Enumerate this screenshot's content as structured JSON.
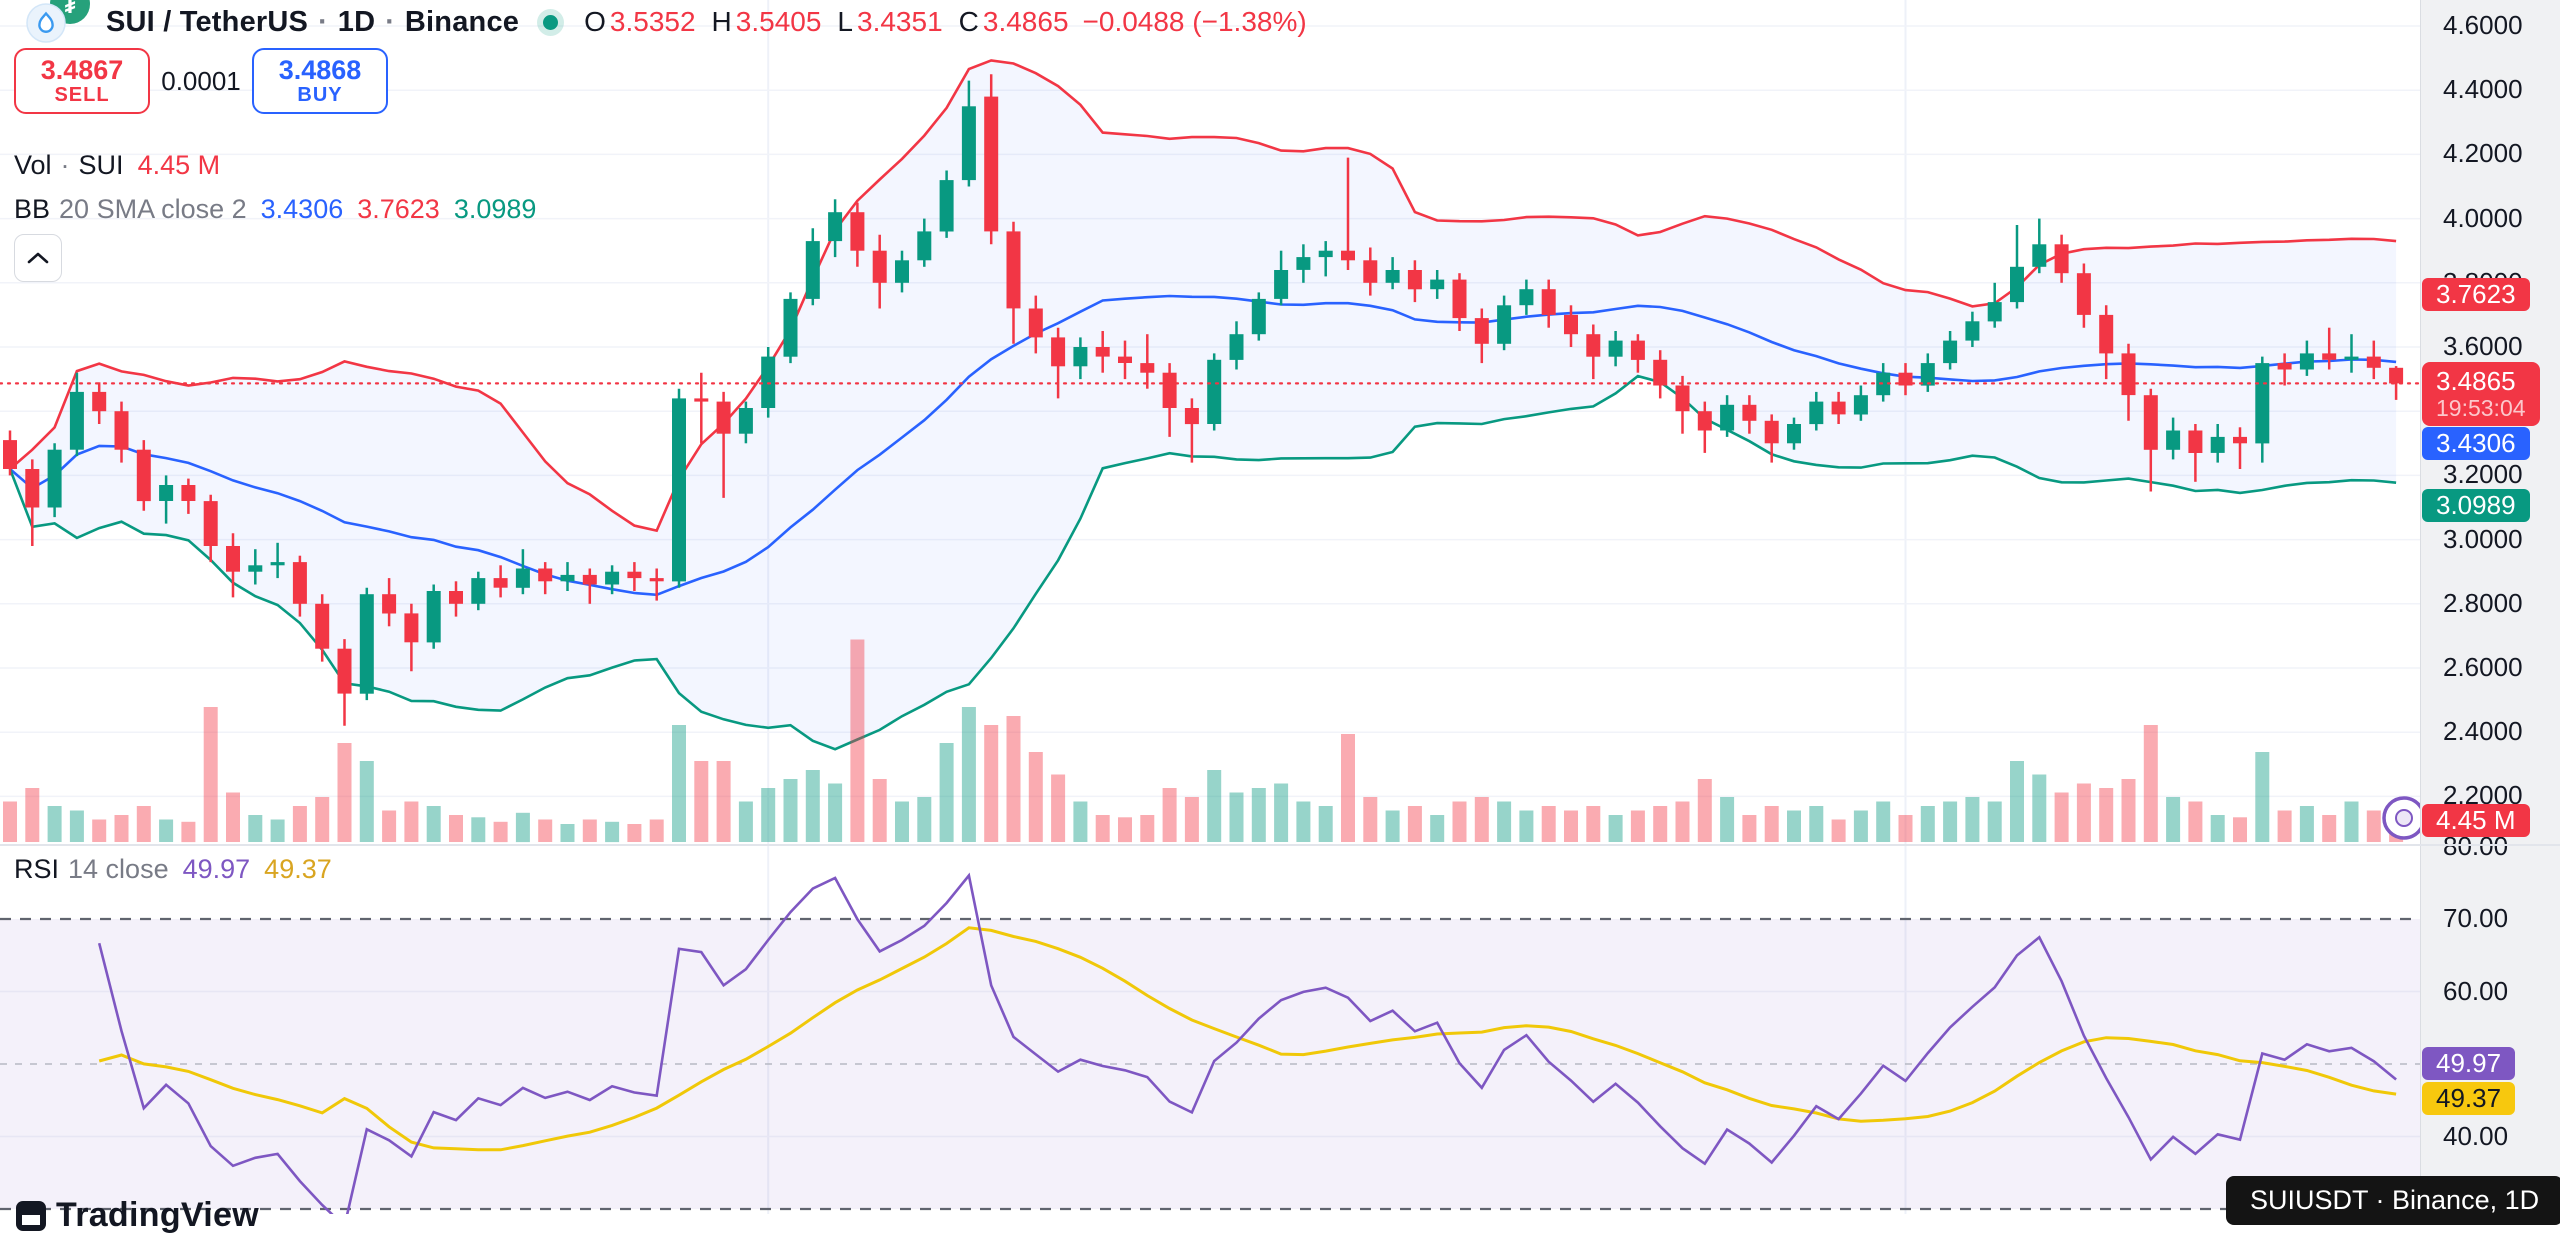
{
  "header": {
    "title_parts": [
      "SUI / TetherUS",
      "1D",
      "Binance"
    ],
    "separator": "·",
    "ohlc": [
      {
        "label": "O",
        "value": "3.5352"
      },
      {
        "label": "H",
        "value": "3.5405"
      },
      {
        "label": "L",
        "value": "3.4351"
      },
      {
        "label": "C",
        "value": "3.4865"
      }
    ],
    "change": "−0.0488 (−1.38%)"
  },
  "trade_panel": {
    "sell_price": "3.4867",
    "sell_label": "SELL",
    "spread": "0.0001",
    "buy_price": "3.4868",
    "buy_label": "BUY"
  },
  "volume_row": {
    "label": "Vol",
    "separator": "·",
    "symbol": "SUI",
    "value": "4.45 M"
  },
  "bb_row": {
    "label": "BB",
    "params": "20 SMA close 2",
    "basis": "3.4306",
    "upper": "3.7623",
    "lower": "3.0989"
  },
  "rsi_row": {
    "label": "RSI",
    "params": "14 close",
    "value": "49.97",
    "ma": "49.37"
  },
  "price_axis": {
    "ticks": [
      {
        "label": "4.6000",
        "value": 4.6
      },
      {
        "label": "4.4000",
        "value": 4.4
      },
      {
        "label": "4.2000",
        "value": 4.2
      },
      {
        "label": "4.0000",
        "value": 4.0
      },
      {
        "label": "3.8000",
        "value": 3.8
      },
      {
        "label": "3.6000",
        "value": 3.6
      },
      {
        "label": "3.2000",
        "value": 3.2
      },
      {
        "label": "3.0000",
        "value": 3.0
      },
      {
        "label": "2.8000",
        "value": 2.8
      },
      {
        "label": "2.6000",
        "value": 2.6
      },
      {
        "label": "2.4000",
        "value": 2.4
      },
      {
        "label": "2.2000",
        "value": 2.2
      }
    ]
  },
  "rsi_axis": {
    "ticks": [
      {
        "label": "80.00",
        "value": 80
      },
      {
        "label": "70.00",
        "value": 70
      },
      {
        "label": "60.00",
        "value": 60
      },
      {
        "label": "40.00",
        "value": 40
      }
    ]
  },
  "badges": {
    "upper": "3.7623",
    "last_price": "3.4865",
    "countdown": "19:53:04",
    "basis": "3.4306",
    "lower": "3.0989",
    "volume": "4.45 M",
    "rsi": "49.97",
    "rsi_ma": "49.37"
  },
  "tooltip": {
    "text": "SUIUSDT · Binance, 1D"
  },
  "logo": {
    "text": "TradingView"
  },
  "colors": {
    "up": "#089981",
    "down": "#f23645",
    "vol_up": "rgba(8,153,129,0.42)",
    "vol_down": "rgba(242,54,69,0.42)",
    "bb_upper": "#f23645",
    "bb_basis": "#2962ff",
    "bb_lower": "#089981",
    "bb_fill": "rgba(41,98,255,0.055)",
    "rsi_line": "#7e57c2",
    "rsi_ma_line": "#f0c808",
    "rsi_band_fill": "rgba(126,87,194,0.085)",
    "grid": "#f1f3f9",
    "vgrid": "#eef1f8",
    "dashed_dark": "#60646e",
    "dashed_mid": "#b6b9c3",
    "last_price_line": "#f23645"
  },
  "chart_data": {
    "type": "candlestick",
    "symbol": "SUIUSDT",
    "exchange": "Binance",
    "interval": "1D",
    "price_visible_range": [
      2.06,
      4.68
    ],
    "rsi_hlines": {
      "upper": 70,
      "middle": 50,
      "lower": 30
    },
    "rsi_gridlines": [
      60,
      40
    ],
    "price_gridlines": [
      4.6,
      4.4,
      4.2,
      4.0,
      3.8,
      3.6,
      3.4,
      3.2,
      3.0,
      2.8,
      2.6,
      2.4,
      2.2
    ],
    "vgrid_candle_indices": [
      34,
      85
    ],
    "indicators": {
      "bollinger": {
        "length": 20,
        "mult": 2,
        "basis": 3.4306,
        "upper": 3.7623,
        "lower": 3.0989
      },
      "rsi": {
        "length": 14,
        "value": 49.97,
        "ma": 49.37
      },
      "last_price": 3.4865,
      "last_volume_m": 4.45
    },
    "volume_unit": "M",
    "candles": [
      [
        3.31,
        3.34,
        3.2,
        3.22,
        9
      ],
      [
        3.22,
        3.25,
        2.98,
        3.1,
        12
      ],
      [
        3.1,
        3.3,
        3.07,
        3.28,
        8
      ],
      [
        3.28,
        3.52,
        3.26,
        3.46,
        7
      ],
      [
        3.46,
        3.49,
        3.36,
        3.4,
        5
      ],
      [
        3.4,
        3.43,
        3.24,
        3.28,
        6
      ],
      [
        3.28,
        3.31,
        3.09,
        3.12,
        8
      ],
      [
        3.12,
        3.2,
        3.05,
        3.17,
        5
      ],
      [
        3.17,
        3.19,
        3.08,
        3.12,
        4.5
      ],
      [
        3.12,
        3.14,
        2.93,
        2.98,
        30
      ],
      [
        2.98,
        3.02,
        2.82,
        2.9,
        11
      ],
      [
        2.9,
        2.97,
        2.86,
        2.92,
        6
      ],
      [
        2.92,
        2.99,
        2.88,
        2.93,
        5
      ],
      [
        2.93,
        2.95,
        2.76,
        2.8,
        8
      ],
      [
        2.8,
        2.83,
        2.62,
        2.66,
        10
      ],
      [
        2.66,
        2.69,
        2.42,
        2.52,
        22
      ],
      [
        2.52,
        2.85,
        2.5,
        2.83,
        18
      ],
      [
        2.83,
        2.88,
        2.73,
        2.77,
        7
      ],
      [
        2.77,
        2.8,
        2.59,
        2.68,
        9
      ],
      [
        2.68,
        2.86,
        2.66,
        2.84,
        8
      ],
      [
        2.84,
        2.87,
        2.76,
        2.8,
        6
      ],
      [
        2.8,
        2.9,
        2.78,
        2.88,
        5.5
      ],
      [
        2.88,
        2.92,
        2.82,
        2.85,
        4.5
      ],
      [
        2.85,
        2.97,
        2.83,
        2.91,
        6.5
      ],
      [
        2.91,
        2.93,
        2.83,
        2.87,
        5
      ],
      [
        2.87,
        2.93,
        2.84,
        2.89,
        4
      ],
      [
        2.89,
        2.91,
        2.8,
        2.86,
        5
      ],
      [
        2.86,
        2.92,
        2.83,
        2.9,
        4.5
      ],
      [
        2.9,
        2.93,
        2.84,
        2.88,
        4
      ],
      [
        2.88,
        2.91,
        2.81,
        2.87,
        5
      ],
      [
        2.87,
        3.47,
        2.85,
        3.44,
        26
      ],
      [
        3.44,
        3.52,
        3.3,
        3.43,
        18
      ],
      [
        3.43,
        3.46,
        3.13,
        3.33,
        18
      ],
      [
        3.33,
        3.43,
        3.3,
        3.41,
        9
      ],
      [
        3.41,
        3.6,
        3.38,
        3.57,
        12
      ],
      [
        3.57,
        3.77,
        3.55,
        3.75,
        14
      ],
      [
        3.75,
        3.97,
        3.73,
        3.93,
        16
      ],
      [
        3.93,
        4.06,
        3.88,
        4.02,
        13
      ],
      [
        4.02,
        4.05,
        3.85,
        3.9,
        45
      ],
      [
        3.9,
        3.95,
        3.72,
        3.8,
        14
      ],
      [
        3.8,
        3.9,
        3.77,
        3.87,
        9
      ],
      [
        3.87,
        4.0,
        3.85,
        3.96,
        10
      ],
      [
        3.96,
        4.15,
        3.94,
        4.12,
        22
      ],
      [
        4.12,
        4.43,
        4.1,
        4.35,
        30
      ],
      [
        4.38,
        4.45,
        3.92,
        3.96,
        26
      ],
      [
        3.96,
        3.99,
        3.61,
        3.72,
        28
      ],
      [
        3.72,
        3.76,
        3.58,
        3.63,
        20
      ],
      [
        3.63,
        3.66,
        3.44,
        3.54,
        15
      ],
      [
        3.54,
        3.63,
        3.5,
        3.6,
        9
      ],
      [
        3.6,
        3.65,
        3.52,
        3.57,
        6
      ],
      [
        3.57,
        3.62,
        3.5,
        3.55,
        5.5
      ],
      [
        3.55,
        3.64,
        3.47,
        3.52,
        6
      ],
      [
        3.52,
        3.55,
        3.32,
        3.41,
        12
      ],
      [
        3.41,
        3.44,
        3.24,
        3.36,
        10
      ],
      [
        3.36,
        3.58,
        3.34,
        3.56,
        16
      ],
      [
        3.56,
        3.68,
        3.53,
        3.64,
        11
      ],
      [
        3.64,
        3.77,
        3.62,
        3.75,
        12
      ],
      [
        3.75,
        3.9,
        3.73,
        3.84,
        13
      ],
      [
        3.84,
        3.92,
        3.8,
        3.88,
        9
      ],
      [
        3.88,
        3.93,
        3.82,
        3.9,
        8
      ],
      [
        3.9,
        4.19,
        3.84,
        3.87,
        24
      ],
      [
        3.87,
        3.91,
        3.76,
        3.8,
        10
      ],
      [
        3.8,
        3.88,
        3.78,
        3.84,
        7
      ],
      [
        3.84,
        3.87,
        3.74,
        3.78,
        8
      ],
      [
        3.78,
        3.84,
        3.75,
        3.81,
        6
      ],
      [
        3.81,
        3.83,
        3.65,
        3.69,
        9
      ],
      [
        3.69,
        3.72,
        3.55,
        3.61,
        10
      ],
      [
        3.61,
        3.76,
        3.59,
        3.73,
        9
      ],
      [
        3.73,
        3.81,
        3.7,
        3.78,
        7
      ],
      [
        3.78,
        3.81,
        3.66,
        3.7,
        8
      ],
      [
        3.7,
        3.73,
        3.6,
        3.64,
        7
      ],
      [
        3.64,
        3.67,
        3.5,
        3.57,
        8
      ],
      [
        3.57,
        3.65,
        3.54,
        3.62,
        6
      ],
      [
        3.62,
        3.64,
        3.52,
        3.56,
        7
      ],
      [
        3.56,
        3.59,
        3.44,
        3.48,
        8
      ],
      [
        3.48,
        3.51,
        3.33,
        3.4,
        9
      ],
      [
        3.4,
        3.43,
        3.27,
        3.34,
        14
      ],
      [
        3.34,
        3.45,
        3.32,
        3.42,
        10
      ],
      [
        3.42,
        3.45,
        3.33,
        3.37,
        6
      ],
      [
        3.37,
        3.39,
        3.24,
        3.3,
        8
      ],
      [
        3.3,
        3.38,
        3.28,
        3.36,
        7
      ],
      [
        3.36,
        3.46,
        3.34,
        3.43,
        8
      ],
      [
        3.43,
        3.46,
        3.36,
        3.39,
        5
      ],
      [
        3.39,
        3.48,
        3.37,
        3.45,
        7
      ],
      [
        3.45,
        3.55,
        3.43,
        3.52,
        9
      ],
      [
        3.52,
        3.55,
        3.45,
        3.48,
        6
      ],
      [
        3.48,
        3.58,
        3.46,
        3.55,
        8
      ],
      [
        3.55,
        3.65,
        3.53,
        3.62,
        9
      ],
      [
        3.62,
        3.71,
        3.6,
        3.68,
        10
      ],
      [
        3.68,
        3.8,
        3.66,
        3.74,
        9
      ],
      [
        3.74,
        3.98,
        3.72,
        3.85,
        18
      ],
      [
        3.85,
        4.0,
        3.83,
        3.92,
        15
      ],
      [
        3.92,
        3.95,
        3.8,
        3.83,
        11
      ],
      [
        3.83,
        3.86,
        3.66,
        3.7,
        13
      ],
      [
        3.7,
        3.73,
        3.5,
        3.58,
        12
      ],
      [
        3.58,
        3.61,
        3.37,
        3.45,
        14
      ],
      [
        3.45,
        3.47,
        3.15,
        3.28,
        26
      ],
      [
        3.28,
        3.38,
        3.25,
        3.34,
        10
      ],
      [
        3.34,
        3.36,
        3.18,
        3.27,
        9
      ],
      [
        3.27,
        3.36,
        3.24,
        3.32,
        6
      ],
      [
        3.32,
        3.35,
        3.22,
        3.3,
        5.5
      ],
      [
        3.3,
        3.57,
        3.24,
        3.55,
        20
      ],
      [
        3.55,
        3.58,
        3.48,
        3.53,
        7
      ],
      [
        3.53,
        3.62,
        3.51,
        3.58,
        8
      ],
      [
        3.58,
        3.66,
        3.53,
        3.56,
        6
      ],
      [
        3.56,
        3.64,
        3.52,
        3.57,
        9
      ],
      [
        3.57,
        3.62,
        3.5,
        3.535,
        7
      ],
      [
        3.5352,
        3.5405,
        3.4351,
        3.4865,
        4.45
      ]
    ]
  }
}
